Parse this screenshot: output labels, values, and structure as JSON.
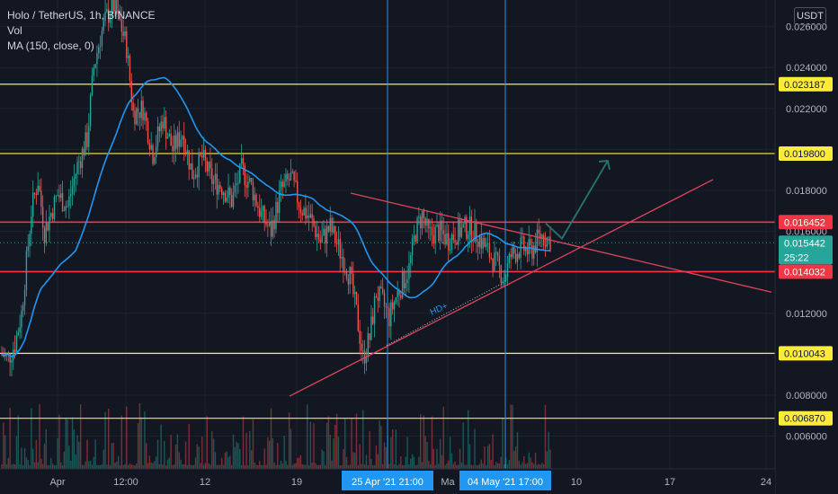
{
  "legend": {
    "symbol": "Holo / TetherUS, 1h, BINANCE",
    "vol": "Vol",
    "ma": "MA (150, close, 0)"
  },
  "currency_button": "USDT",
  "colors": {
    "background": "#131722",
    "grid": "#1e222d",
    "up": "#26a69a",
    "down": "#ef5350",
    "ma": "#2196f3",
    "yellow_level": "#ffeb3b",
    "red_level": "#f23645",
    "trend": "#e0445e",
    "arrow": "#26766e",
    "cursor": "#2196f3"
  },
  "chart_data": {
    "type": "candlestick",
    "yticks": [
      "0.026000",
      "0.024000",
      "0.022000",
      "0.020000",
      "0.018000",
      "0.016000",
      "0.014000",
      "0.012000",
      "0.010000",
      "0.008000",
      "0.006000"
    ],
    "xticks": [
      "Apr",
      "12:00",
      "12",
      "19",
      "Ma",
      "10",
      "17",
      "24"
    ],
    "ylim": [
      0.0044,
      0.0273
    ],
    "price_levels": [
      {
        "value": 0.023187,
        "label": "0.023187",
        "kind": "yellow"
      },
      {
        "value": 0.0198,
        "label": "0.019800",
        "kind": "yellow"
      },
      {
        "value": 0.016452,
        "label": "0.016452",
        "kind": "red"
      },
      {
        "value": 0.014032,
        "label": "0.014032",
        "kind": "red"
      },
      {
        "value": 0.010043,
        "label": "0.010043",
        "kind": "yellow"
      },
      {
        "value": 0.00687,
        "label": "0.006870",
        "kind": "yellow"
      }
    ],
    "last_price": {
      "value": 0.015442,
      "label": "0.015442",
      "countdown": "25:22"
    },
    "cursor_labels": [
      "25 Apr '21",
      "21:00",
      "04 May '21",
      "17:00"
    ],
    "annotation": "HD+",
    "ma_period": 150
  }
}
